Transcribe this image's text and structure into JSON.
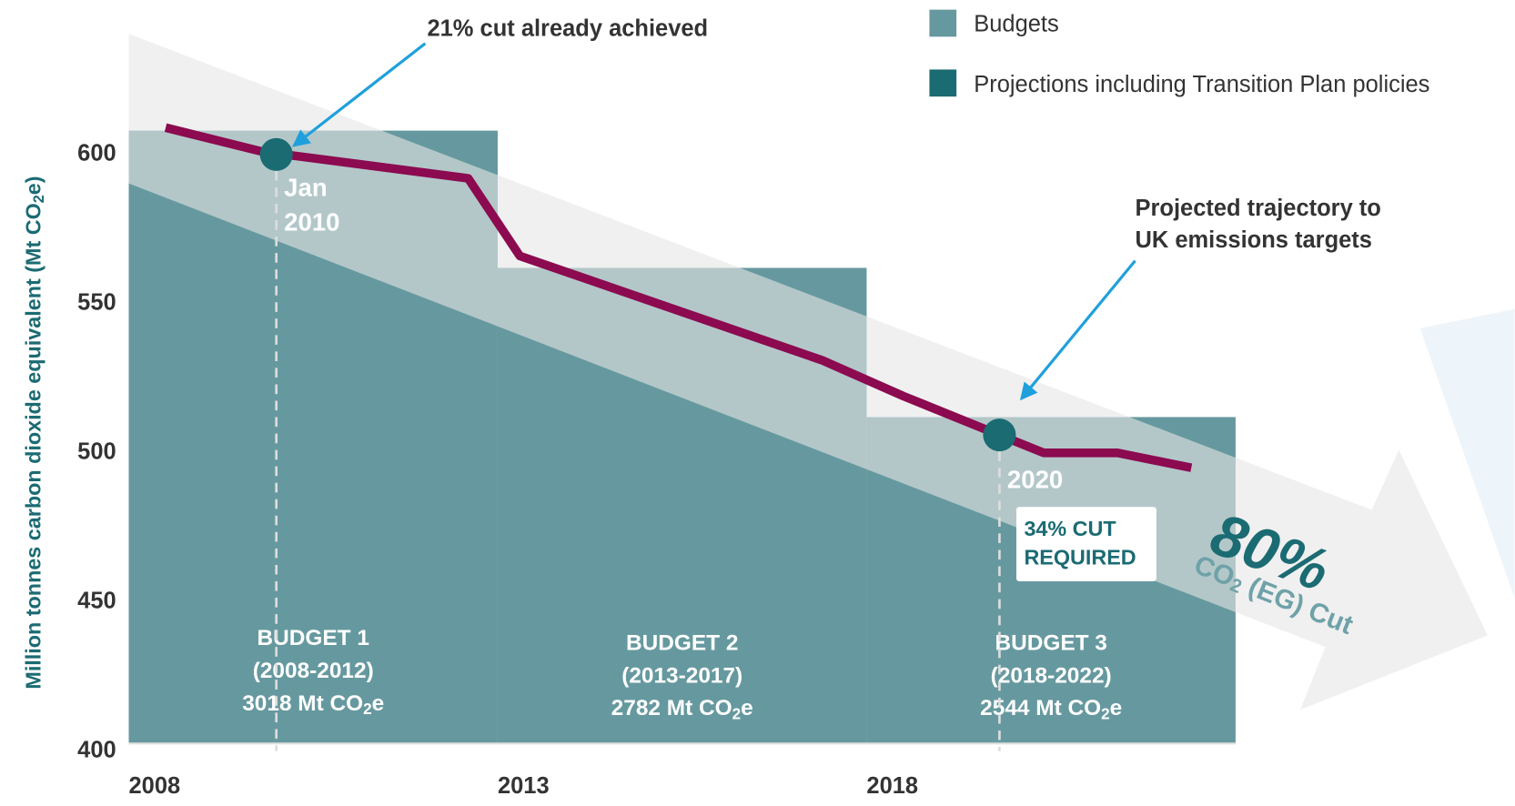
{
  "chart_data": {
    "type": "line",
    "y_label": {
      "pre": "Million tonnes carbon dioxide equivalent (Mt CO",
      "sub": "2",
      "post": "e)"
    },
    "xlim": [
      2008,
      2023
    ],
    "xticks": [
      2008,
      2013,
      2018
    ],
    "ylim": [
      400,
      600
    ],
    "yticks": [
      400,
      450,
      500,
      550,
      600
    ],
    "budgets": {
      "name": "Budgets",
      "color": "#66999f",
      "items": [
        {
          "lines": [
            "BUDGET 1",
            "(2008-2012)"
          ],
          "total": {
            "pre": "3018 Mt CO",
            "sub": "2",
            "post": "e"
          },
          "start": 2008,
          "end": 2013,
          "value": 608
        },
        {
          "lines": [
            "BUDGET 2",
            "(2013-2017)"
          ],
          "total": {
            "pre": "2782 Mt CO",
            "sub": "2",
            "post": "e"
          },
          "start": 2013,
          "end": 2018,
          "value": 562
        },
        {
          "lines": [
            "BUDGET 3",
            "(2018-2022)"
          ],
          "total": {
            "pre": "2544 Mt CO",
            "sub": "2",
            "post": "e"
          },
          "start": 2018,
          "end": 2023,
          "value": 512
        }
      ]
    },
    "projection": {
      "color": "#8b0a50",
      "x": [
        2008.5,
        2009.8,
        2012.6,
        2013.3,
        2017.4,
        2018.5,
        2019.8,
        2020.4,
        2021.4,
        2022.4
      ],
      "values": [
        609,
        601,
        592,
        566,
        531,
        519,
        506,
        500,
        500,
        495
      ]
    },
    "markers": {
      "name": "Projections including Transition Plan policies",
      "color": "#1b6b73",
      "items": [
        {
          "x": 2010,
          "y": 600,
          "label": [
            "Jan",
            "2010"
          ]
        },
        {
          "x": 2019.8,
          "y": 506,
          "label": [
            "2020"
          ]
        }
      ]
    },
    "annotations": {
      "achieved": "21% cut already achieved",
      "trajectory": [
        "Projected trajectory to",
        "UK emissions targets"
      ],
      "required": [
        "34% CUT",
        "REQUIRED"
      ],
      "target": "80%",
      "target_label": {
        "pre": "CO",
        "sub": "2",
        "post": " (EG) Cut"
      }
    }
  }
}
